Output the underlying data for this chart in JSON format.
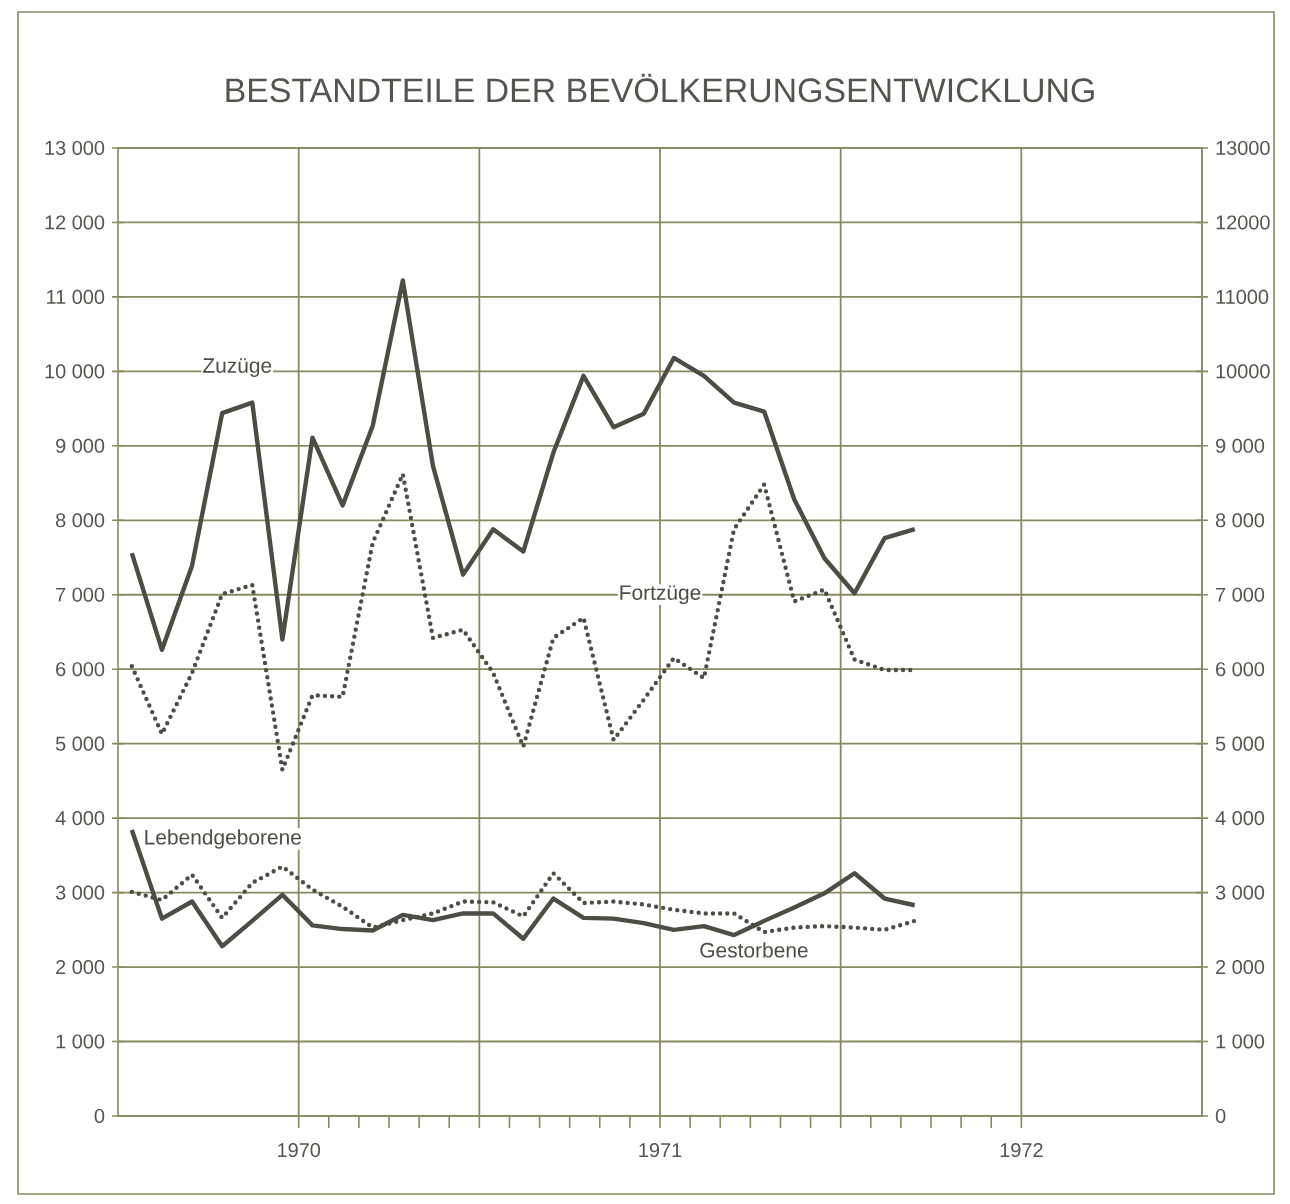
{
  "chart_data": {
    "type": "line",
    "title": "BESTANDTEILE DER BEVÖLKERUNGSENTWICKLUNG",
    "x": [
      "1970-01-15",
      "1970-02-15",
      "1970-03-15",
      "1970-04-15",
      "1970-05-15",
      "1970-06-15",
      "1970-07-15",
      "1970-08-15",
      "1970-09-15",
      "1970-10-15",
      "1970-11-15",
      "1970-12-15",
      "1971-01-15",
      "1971-02-15",
      "1971-03-15",
      "1971-04-15",
      "1971-05-15",
      "1971-06-15",
      "1971-07-15",
      "1971-08-15",
      "1971-09-15",
      "1971-10-15",
      "1971-11-15",
      "1971-12-15",
      "1972-01-15",
      "1972-02-15",
      "1972-03-15"
    ],
    "series": [
      {
        "name": "Zuzüge",
        "color": "#4d4d45",
        "line_style": "solid",
        "values": [
          7560,
          6260,
          7390,
          9440,
          9580,
          6400,
          9110,
          8200,
          9270,
          11220,
          8730,
          7270,
          7880,
          7580,
          8910,
          9940,
          9250,
          9430,
          10180,
          9940,
          9580,
          9460,
          8280,
          7490,
          7020,
          7760,
          7880
        ]
      },
      {
        "name": "Fortzüge",
        "color": "#4d4d45",
        "line_style": "dotted",
        "values": [
          6040,
          5130,
          5950,
          7010,
          7130,
          4650,
          5650,
          5630,
          7700,
          8620,
          6420,
          6530,
          5950,
          4960,
          6420,
          6690,
          5050,
          5590,
          6150,
          5880,
          7880,
          8480,
          6910,
          7070,
          6130,
          5990,
          5990
        ]
      },
      {
        "name": "Lebendgeborene",
        "color": "#4d4d45",
        "line_style": "solid",
        "values": [
          3840,
          2650,
          2880,
          2280,
          2620,
          2970,
          2560,
          2510,
          2490,
          2700,
          2630,
          2720,
          2720,
          2380,
          2920,
          2660,
          2650,
          2590,
          2500,
          2550,
          2430,
          2620,
          2800,
          2990,
          3260,
          2920,
          2830
        ]
      },
      {
        "name": "Gestorbene",
        "color": "#4d4d45",
        "line_style": "dotted",
        "values": [
          3010,
          2900,
          3240,
          2660,
          3130,
          3350,
          3040,
          2810,
          2530,
          2630,
          2720,
          2880,
          2870,
          2680,
          3260,
          2860,
          2880,
          2840,
          2770,
          2720,
          2720,
          2470,
          2530,
          2550,
          2530,
          2500,
          2620
        ]
      }
    ],
    "xlim": [
      "1970-01",
      "1973-01"
    ],
    "xticks": [
      {
        "value": "1970-07",
        "label": "1970"
      },
      {
        "value": "1971-01",
        "label": null
      },
      {
        "value": "1971-07",
        "label": "1971"
      },
      {
        "value": "1972-01",
        "label": null
      },
      {
        "value": "1972-07",
        "label": "1972"
      }
    ],
    "ylim": [
      0,
      13000
    ],
    "yticks": [
      0,
      {
        "value": 1000,
        "label": "1 000"
      },
      {
        "value": 2000,
        "label": "2 000"
      },
      {
        "value": 3000,
        "label": "3 000"
      },
      {
        "value": 4000,
        "label": "4 000"
      },
      {
        "value": 5000,
        "label": "5 000"
      },
      {
        "value": 6000,
        "label": "6 000"
      },
      {
        "value": 7000,
        "label": "7 000"
      },
      {
        "value": 8000,
        "label": "8 000"
      },
      {
        "value": 9000,
        "label": "9 000"
      },
      {
        "value": 10000,
        "label": "10 000"
      },
      {
        "value": 11000,
        "label": "11 000"
      },
      {
        "value": 12000,
        "label": "12 000"
      },
      {
        "value": 13000,
        "label": "13 000"
      }
    ],
    "y2lim": [
      0,
      13000
    ],
    "y2ticks": [
      0,
      {
        "value": 1000,
        "label": "1 000"
      },
      {
        "value": 2000,
        "label": "2 000"
      },
      {
        "value": 3000,
        "label": "3 000"
      },
      {
        "value": 4000,
        "label": "4 000"
      },
      {
        "value": 5000,
        "label": "5 000"
      },
      {
        "value": 6000,
        "label": "6 000"
      },
      {
        "value": 7000,
        "label": "7 000"
      },
      {
        "value": 8000,
        "label": "8 000"
      },
      {
        "value": 9000,
        "label": "9 000"
      },
      10000,
      11000,
      12000,
      13000
    ],
    "grid": true
  }
}
